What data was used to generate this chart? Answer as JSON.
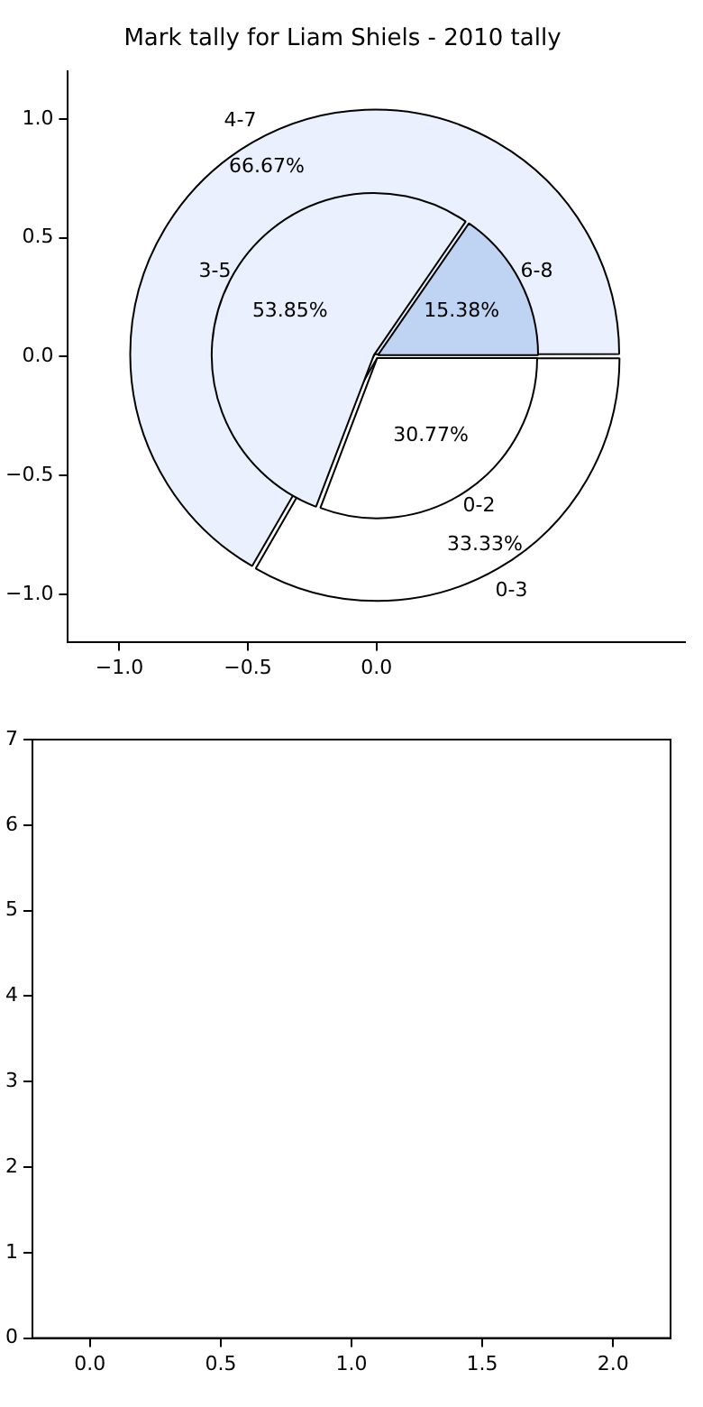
{
  "chart_data": [
    {
      "type": "scatter",
      "title": "Mark tally for Liam Shiels - 2010 tally",
      "xlim": [
        -1.2,
        1.2
      ],
      "ylim": [
        -1.2,
        1.2
      ],
      "xticks": [
        {
          "value": -1,
          "label": "−1.0"
        },
        {
          "value": -0.5,
          "label": "−0.5"
        },
        {
          "value": 0,
          "label": "0.0"
        }
      ],
      "yticks": [
        {
          "value": -1,
          "label": "−1.0"
        },
        {
          "value": -0.5,
          "label": "−0.5"
        },
        {
          "value": 0,
          "label": "0.0"
        },
        {
          "value": 0.5,
          "label": "0.5"
        },
        {
          "value": 1,
          "label": "1.0"
        }
      ],
      "grid": false
    },
    {
      "type": "pie",
      "categories": [
        "0-3",
        "4-7"
      ],
      "values": [
        33.33,
        66.67
      ],
      "colors": [
        "#ffffff",
        "#eaf0fd"
      ],
      "value_labels": [
        "33.33%",
        "66.67%"
      ]
    },
    {
      "type": "pie",
      "categories": [
        "0-2",
        "3-5",
        "6-8"
      ],
      "values": [
        30.77,
        53.85,
        15.38
      ],
      "colors": [
        "#ffffff",
        "#eaf0fd",
        "#bfd4f2"
      ],
      "value_labels": [
        "30.77%",
        "53.85%",
        "15.38%"
      ]
    },
    {
      "type": "scatter",
      "xlim": [
        -0.22,
        2.22
      ],
      "ylim": [
        0,
        7
      ],
      "xticks": [
        {
          "value": 0,
          "label": "0.0"
        },
        {
          "value": 0.5,
          "label": "0.5"
        },
        {
          "value": 1,
          "label": "1.0"
        },
        {
          "value": 1.5,
          "label": "1.5"
        },
        {
          "value": 2,
          "label": "2.0"
        }
      ],
      "yticks": [
        {
          "value": 0,
          "label": "0"
        },
        {
          "value": 1,
          "label": "1"
        },
        {
          "value": 2,
          "label": "2"
        },
        {
          "value": 3,
          "label": "3"
        },
        {
          "value": 4,
          "label": "4"
        },
        {
          "value": 5,
          "label": "5"
        },
        {
          "value": 6,
          "label": "6"
        },
        {
          "value": 7,
          "label": "7"
        }
      ],
      "grid": false
    }
  ]
}
